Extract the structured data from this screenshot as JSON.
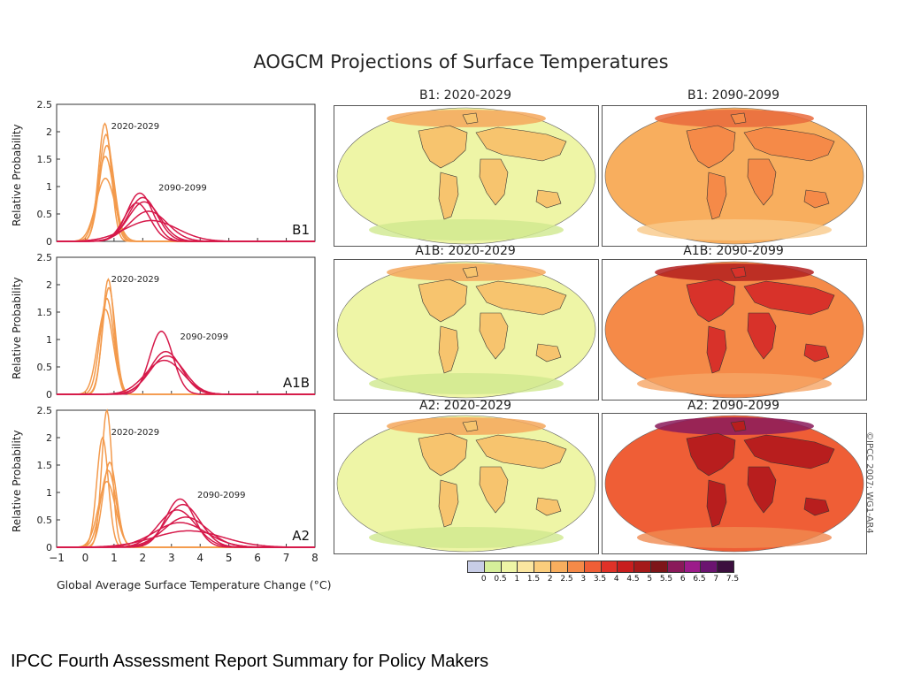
{
  "figure": {
    "title": "AOGCM Projections of Surface Temperatures",
    "y_axis_label": "Relative Probability",
    "x_axis_label": "Global Average Surface Temperature Change (°C)",
    "copyright": "©IPCC 2007: WG1-AR4",
    "footer": "IPCC Fourth Assessment Report Summary for Policy Makers"
  },
  "maps": [
    {
      "title": "B1: 2020-2029",
      "scenario": "B1",
      "period": "2020-2029",
      "dominant_class": "0.5-1",
      "level": 1
    },
    {
      "title": "B1: 2090-2099",
      "scenario": "B1",
      "period": "2090-2099",
      "dominant_class": "2-2.5",
      "level": 3
    },
    {
      "title": "A1B: 2020-2029",
      "scenario": "A1B",
      "period": "2020-2029",
      "dominant_class": "0.5-1",
      "level": 1
    },
    {
      "title": "A1B: 2090-2099",
      "scenario": "A1B",
      "period": "2090-2099",
      "dominant_class": "3-3.5",
      "level": 4
    },
    {
      "title": "A2: 2020-2029",
      "scenario": "A2",
      "period": "2020-2029",
      "dominant_class": "0.5-1",
      "level": 1
    },
    {
      "title": "A2: 2090-2099",
      "scenario": "A2",
      "period": "2090-2099",
      "dominant_class": "3.5-4",
      "level": 5
    }
  ],
  "colorbar": {
    "labels": [
      "0",
      "0.5",
      "1",
      "1.5",
      "2",
      "2.5",
      "3",
      "3.5",
      "4",
      "4.5",
      "5",
      "5.5",
      "6",
      "6.5",
      "7",
      "7.5"
    ],
    "colors": [
      "#c8cde6",
      "#d6ef9a",
      "#eef5a6",
      "#fbe6a0",
      "#fbcd7c",
      "#f8ae5e",
      "#f58a48",
      "#ef5e36",
      "#e03228",
      "#c81e1e",
      "#a51a1a",
      "#7e1519",
      "#8a1a5a",
      "#9c1c8a",
      "#6b1470",
      "#3c0f3e"
    ]
  },
  "chart_data": [
    {
      "type": "line",
      "panel_label": "B1",
      "xlim": [
        -1,
        8
      ],
      "ylim": [
        0,
        2.5
      ],
      "yticks": [
        "0",
        "0.5",
        "1",
        "1.5",
        "2",
        "2.5"
      ],
      "series": [
        {
          "name": "2020-2029",
          "color": "#f39a4c",
          "curves": [
            {
              "mu": 0.68,
              "peak": 2.15,
              "sd": 0.22
            },
            {
              "mu": 0.72,
              "peak": 1.95,
              "sd": 0.24
            },
            {
              "mu": 0.75,
              "peak": 1.75,
              "sd": 0.26
            },
            {
              "mu": 0.7,
              "peak": 1.55,
              "sd": 0.28
            },
            {
              "mu": 0.7,
              "peak": 1.15,
              "sd": 0.33
            }
          ]
        },
        {
          "name": "2090-2099",
          "color": "#d6194a",
          "curves": [
            {
              "mu": 1.9,
              "peak": 0.88,
              "sd": 0.45
            },
            {
              "mu": 2.0,
              "peak": 0.8,
              "sd": 0.5
            },
            {
              "mu": 2.05,
              "peak": 0.72,
              "sd": 0.55
            },
            {
              "mu": 1.8,
              "peak": 0.7,
              "sd": 0.45
            },
            {
              "mu": 2.2,
              "peak": 0.55,
              "sd": 0.65
            },
            {
              "mu": 2.3,
              "peak": 0.38,
              "sd": 0.9
            }
          ]
        }
      ],
      "annotations": [
        {
          "text": "2020-2029",
          "x": 0.9,
          "y": 2.05
        },
        {
          "text": "2090-2099",
          "x": 2.55,
          "y": 0.93
        }
      ]
    },
    {
      "type": "line",
      "panel_label": "A1B",
      "xlim": [
        -1,
        8
      ],
      "ylim": [
        0,
        2.5
      ],
      "yticks": [
        "0",
        "0.5",
        "1",
        "1.5",
        "2",
        "2.5"
      ],
      "series": [
        {
          "name": "2020-2029",
          "color": "#f39a4c",
          "curves": [
            {
              "mu": 0.8,
              "peak": 2.1,
              "sd": 0.2
            },
            {
              "mu": 0.82,
              "peak": 1.95,
              "sd": 0.22
            },
            {
              "mu": 0.75,
              "peak": 1.75,
              "sd": 0.24
            },
            {
              "mu": 0.7,
              "peak": 1.55,
              "sd": 0.27
            }
          ]
        },
        {
          "name": "2090-2099",
          "color": "#d6194a",
          "curves": [
            {
              "mu": 2.65,
              "peak": 1.15,
              "sd": 0.4
            },
            {
              "mu": 2.8,
              "peak": 0.78,
              "sd": 0.55
            },
            {
              "mu": 2.85,
              "peak": 0.7,
              "sd": 0.6
            },
            {
              "mu": 2.75,
              "peak": 0.62,
              "sd": 0.65
            }
          ]
        }
      ],
      "annotations": [
        {
          "text": "2020-2029",
          "x": 0.9,
          "y": 2.05
        },
        {
          "text": "2090-2099",
          "x": 3.3,
          "y": 1.0
        }
      ]
    },
    {
      "type": "line",
      "panel_label": "A2",
      "xlim": [
        -1,
        8
      ],
      "ylim": [
        0,
        2.5
      ],
      "yticks": [
        "0",
        "0.5",
        "1",
        "1.5",
        "2",
        "2.5"
      ],
      "series": [
        {
          "name": "2020-2029",
          "color": "#f39a4c",
          "curves": [
            {
              "mu": 0.75,
              "peak": 2.5,
              "sd": 0.18
            },
            {
              "mu": 0.6,
              "peak": 2.0,
              "sd": 0.2
            },
            {
              "mu": 0.85,
              "peak": 1.55,
              "sd": 0.24
            },
            {
              "mu": 0.8,
              "peak": 1.4,
              "sd": 0.27
            },
            {
              "mu": 0.75,
              "peak": 1.2,
              "sd": 0.3
            }
          ]
        },
        {
          "name": "2090-2099",
          "color": "#d6194a",
          "curves": [
            {
              "mu": 3.3,
              "peak": 0.88,
              "sd": 0.5
            },
            {
              "mu": 3.4,
              "peak": 0.78,
              "sd": 0.6
            },
            {
              "mu": 3.2,
              "peak": 0.68,
              "sd": 0.65
            },
            {
              "mu": 3.5,
              "peak": 0.55,
              "sd": 0.75
            },
            {
              "mu": 3.3,
              "peak": 0.45,
              "sd": 0.9
            },
            {
              "mu": 3.6,
              "peak": 0.3,
              "sd": 1.2
            }
          ]
        }
      ],
      "annotations": [
        {
          "text": "2020-2029",
          "x": 0.9,
          "y": 2.05
        },
        {
          "text": "2090-2099",
          "x": 3.9,
          "y": 0.9
        }
      ]
    }
  ],
  "xticks": [
    "−1",
    "0",
    "1",
    "2",
    "3",
    "4",
    "5",
    "6",
    "7",
    "8"
  ]
}
